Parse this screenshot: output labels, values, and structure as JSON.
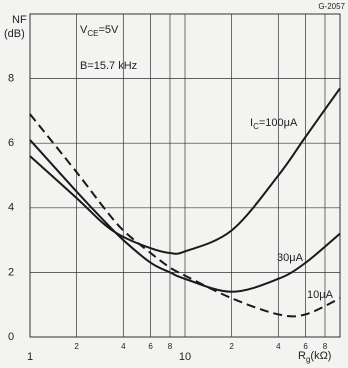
{
  "chart_data": {
    "type": "line",
    "code": "G-2057",
    "ylabel": {
      "text": "NF",
      "unit": "(dB)"
    },
    "xlabel": {
      "text": "R",
      "sub": "g",
      "rest": "(kΩ)"
    },
    "annotations": [
      {
        "text": "V",
        "sub": "CE",
        "rest": "=5V"
      },
      {
        "text": "B=15.7 kHz"
      }
    ],
    "log_x": true,
    "xlim": [
      1,
      100
    ],
    "ylim": [
      0,
      10
    ],
    "xticks": [
      1,
      2,
      4,
      6,
      8,
      10,
      {
        "value": 20,
        "label": "2"
      },
      {
        "value": 40,
        "label": "4"
      },
      {
        "value": 60,
        "label": "6"
      },
      {
        "value": 80,
        "label": "8"
      }
    ],
    "yticks": [
      0,
      2,
      4,
      6,
      8
    ],
    "grid": true,
    "x": [
      1,
      2,
      3,
      4,
      6,
      8,
      10,
      20,
      40,
      60,
      100
    ],
    "series": [
      {
        "name": {
          "text": "I",
          "sub": "C",
          "rest": "=100μA"
        },
        "color": "#1a1a1a",
        "dash": false,
        "values": [
          5.6,
          4.3,
          3.5,
          3.1,
          2.75,
          2.6,
          2.65,
          3.3,
          5.0,
          6.2,
          7.7
        ]
      },
      {
        "name": {
          "text": "30μA"
        },
        "color": "#1a1a1a",
        "dash": false,
        "values": [
          6.1,
          4.5,
          3.6,
          3.0,
          2.3,
          2.0,
          1.8,
          1.4,
          1.8,
          2.3,
          3.2
        ]
      },
      {
        "name": {
          "text": "10μA"
        },
        "color": "#1a1a1a",
        "dash": true,
        "values": [
          6.9,
          5.1,
          4.0,
          3.3,
          2.6,
          2.15,
          1.9,
          1.2,
          0.7,
          0.7,
          1.2
        ]
      }
    ]
  }
}
